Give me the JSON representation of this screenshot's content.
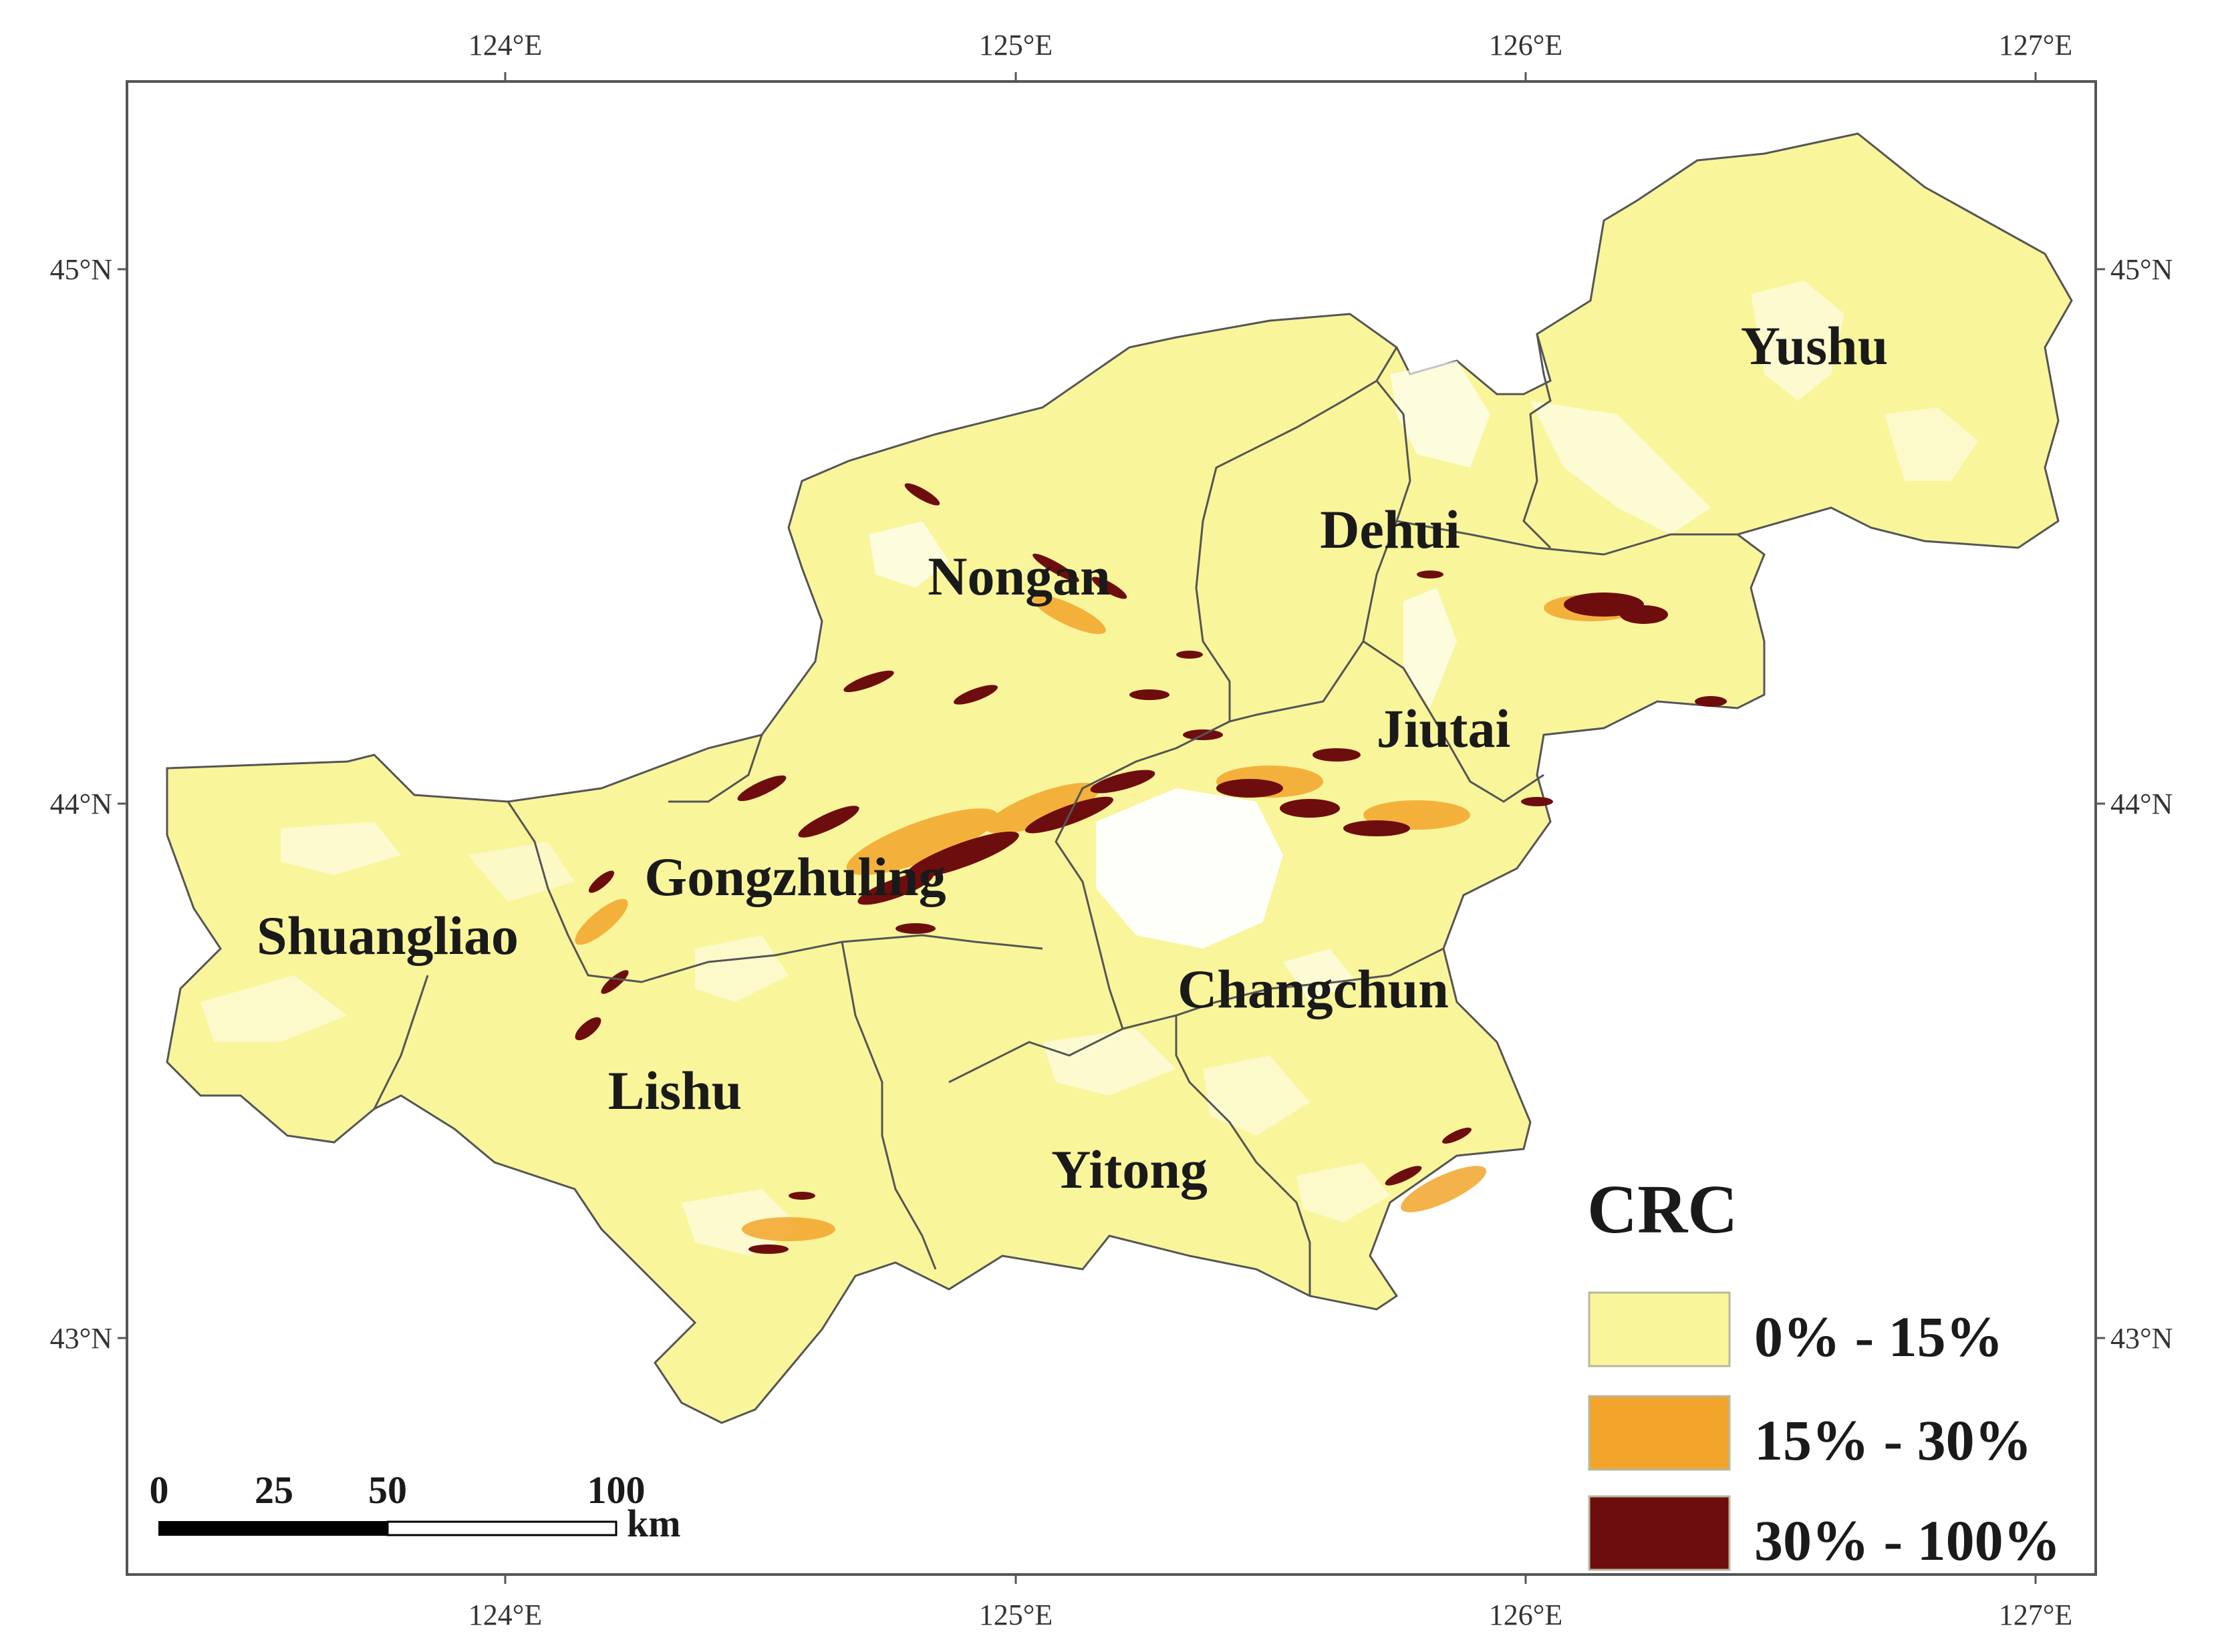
{
  "map": {
    "longitude_ticks": [
      "124°E",
      "125°E",
      "126°E",
      "127°E"
    ],
    "latitude_ticks": [
      "45°N",
      "44°N",
      "43°N"
    ],
    "regions": [
      {
        "name": "Yushu"
      },
      {
        "name": "Dehui"
      },
      {
        "name": "Nongan"
      },
      {
        "name": "Jiutai"
      },
      {
        "name": "Gongzhuling"
      },
      {
        "name": "Shuangliao"
      },
      {
        "name": "Changchun"
      },
      {
        "name": "Lishu"
      },
      {
        "name": "Yitong"
      }
    ],
    "legend": {
      "title": "CRC",
      "classes": [
        {
          "label": "0% - 15%",
          "color": "#f9f59a"
        },
        {
          "label": "15% - 30%",
          "color": "#f3a52b"
        },
        {
          "label": "30% - 100%",
          "color": "#6e0d0d"
        }
      ]
    },
    "scale_bar": {
      "ticks": [
        "0",
        "25",
        "50",
        "100"
      ],
      "unit": "km"
    },
    "colors": {
      "land": "#f9f59a",
      "mid": "#f3a52b",
      "high": "#6e0d0d",
      "frame": "#555555"
    }
  }
}
